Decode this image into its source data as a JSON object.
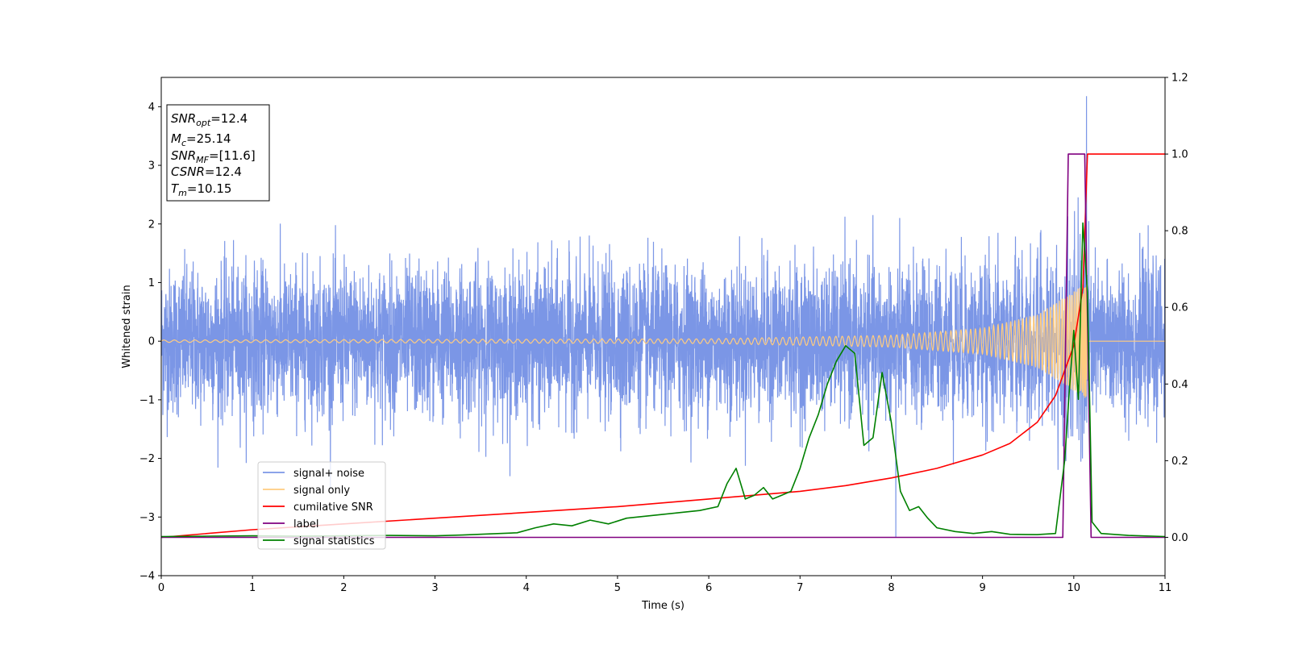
{
  "chart_data": {
    "type": "line",
    "xlabel": "Time (s)",
    "ylabel": "Whitened strain",
    "xlim": [
      0,
      11
    ],
    "ylim": [
      -4,
      4.5
    ],
    "y2lim": [
      -0.1,
      1.2
    ],
    "x_ticks": [
      "0",
      "1",
      "2",
      "3",
      "4",
      "5",
      "6",
      "7",
      "8",
      "9",
      "10",
      "11"
    ],
    "y_ticks": [
      "−4",
      "−3",
      "−2",
      "−1",
      "0",
      "1",
      "2",
      "3",
      "4"
    ],
    "y2_ticks": [
      "0.0",
      "0.2",
      "0.4",
      "0.6",
      "0.8",
      "1.0",
      "1.2"
    ],
    "legend_position": "lower-left",
    "info_box": {
      "snr_opt": {
        "main": "SNR",
        "sub": "opt",
        "value": "=12.4"
      },
      "mc": {
        "main": "M",
        "sub": "c",
        "value": "=25.14"
      },
      "snr_mf": {
        "main": "SNR",
        "sub": "MF",
        "value": "=[11.6]"
      },
      "csnr": {
        "main": "CSNR",
        "sub": "",
        "value": "=12.4"
      },
      "tm": {
        "main": "T",
        "sub": "m",
        "value": "=10.15"
      }
    },
    "series": [
      {
        "key": "noise",
        "name": "signal+ noise",
        "color": "#7b96e6",
        "axis": "left",
        "noise_std": 0.62,
        "peak": {
          "x": 10.14,
          "y": 4.18
        },
        "dip": {
          "x": 8.05,
          "y": -3.35
        }
      },
      {
        "key": "signal",
        "name": "signal only",
        "color": "#ffcc80",
        "axis": "left",
        "merger_time": 10.15,
        "envelope": [
          [
            0,
            0.02
          ],
          [
            6,
            0.04
          ],
          [
            8,
            0.1
          ],
          [
            9,
            0.22
          ],
          [
            9.6,
            0.45
          ],
          [
            10.0,
            0.85
          ],
          [
            10.15,
            1.0
          ]
        ]
      },
      {
        "key": "csnr",
        "name": "cumilative SNR",
        "color": "#ff0000",
        "axis": "right",
        "x": [
          0,
          1,
          2,
          3,
          4,
          5,
          6,
          7,
          7.5,
          8,
          8.5,
          9,
          9.3,
          9.6,
          9.8,
          10.0,
          10.1,
          10.15,
          10.2,
          11
        ],
        "y": [
          0.0,
          0.02,
          0.035,
          0.05,
          0.065,
          0.08,
          0.1,
          0.12,
          0.135,
          0.155,
          0.18,
          0.215,
          0.245,
          0.3,
          0.37,
          0.5,
          0.65,
          1.0,
          1.0,
          1.0
        ]
      },
      {
        "key": "label",
        "name": "label",
        "color": "#800080",
        "axis": "right",
        "x": [
          0,
          9.88,
          9.94,
          10.12,
          10.19,
          11
        ],
        "y": [
          0,
          0,
          1,
          1,
          0,
          0
        ]
      },
      {
        "key": "stats",
        "name": "signal statistics",
        "color": "#008000",
        "axis": "right",
        "x": [
          0,
          0.5,
          1,
          1.5,
          2,
          2.5,
          3,
          3.3,
          3.6,
          3.9,
          4.1,
          4.3,
          4.5,
          4.7,
          4.9,
          5.1,
          5.3,
          5.5,
          5.7,
          5.9,
          6.1,
          6.2,
          6.3,
          6.4,
          6.5,
          6.6,
          6.7,
          6.8,
          6.9,
          7.0,
          7.1,
          7.2,
          7.3,
          7.4,
          7.5,
          7.6,
          7.7,
          7.8,
          7.9,
          8.0,
          8.1,
          8.2,
          8.3,
          8.4,
          8.5,
          8.7,
          8.9,
          9.1,
          9.3,
          9.6,
          9.8,
          9.9,
          9.95,
          10.0,
          10.05,
          10.1,
          10.15,
          10.2,
          10.3,
          10.6,
          11
        ],
        "y": [
          0.002,
          0.003,
          0.004,
          0.003,
          0.004,
          0.005,
          0.004,
          0.006,
          0.009,
          0.012,
          0.025,
          0.035,
          0.03,
          0.045,
          0.035,
          0.05,
          0.055,
          0.06,
          0.065,
          0.07,
          0.08,
          0.14,
          0.18,
          0.1,
          0.11,
          0.13,
          0.1,
          0.11,
          0.12,
          0.18,
          0.26,
          0.32,
          0.4,
          0.46,
          0.5,
          0.48,
          0.24,
          0.26,
          0.43,
          0.3,
          0.12,
          0.07,
          0.08,
          0.05,
          0.025,
          0.015,
          0.01,
          0.015,
          0.008,
          0.007,
          0.01,
          0.2,
          0.38,
          0.54,
          0.36,
          0.82,
          0.64,
          0.04,
          0.01,
          0.005,
          0.002
        ]
      }
    ]
  }
}
